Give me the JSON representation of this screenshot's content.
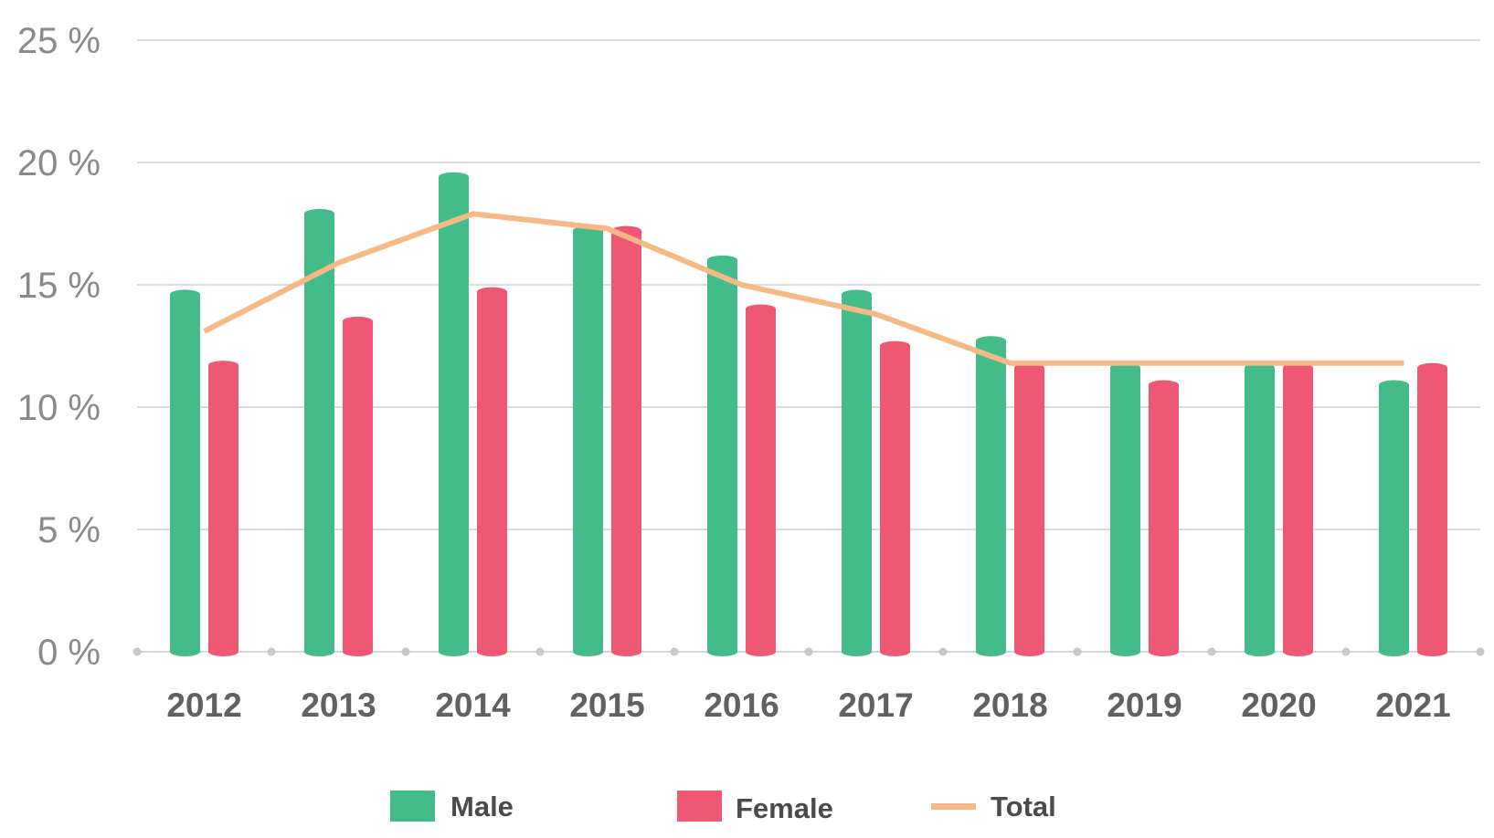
{
  "chart_data": {
    "type": "bar",
    "categories": [
      "2012",
      "2013",
      "2014",
      "2015",
      "2016",
      "2017",
      "2018",
      "2019",
      "2020",
      "2021"
    ],
    "y_tick_labels": [
      "0 %",
      "5 %",
      "10 %",
      "15 %",
      "20 %",
      "25 %"
    ],
    "y_ticks": [
      0,
      5,
      10,
      15,
      20,
      25
    ],
    "ylim": [
      0,
      25
    ],
    "grid": true,
    "legend_position": "bottom",
    "series": [
      {
        "name": "Male",
        "type": "bar",
        "color": "#43bc8a",
        "values": [
          14.8,
          18.1,
          19.6,
          17.4,
          16.2,
          14.8,
          12.9,
          11.8,
          11.8,
          11.1
        ]
      },
      {
        "name": "Female",
        "type": "bar",
        "color": "#ee5873",
        "values": [
          11.9,
          13.7,
          14.9,
          17.4,
          14.2,
          12.7,
          11.8,
          11.1,
          11.8,
          11.8
        ]
      },
      {
        "name": "Total",
        "type": "line",
        "color": "#f5b985",
        "values": [
          13.1,
          15.9,
          17.9,
          17.3,
          15.0,
          13.8,
          11.8,
          11.8,
          11.8,
          11.8
        ]
      }
    ]
  }
}
